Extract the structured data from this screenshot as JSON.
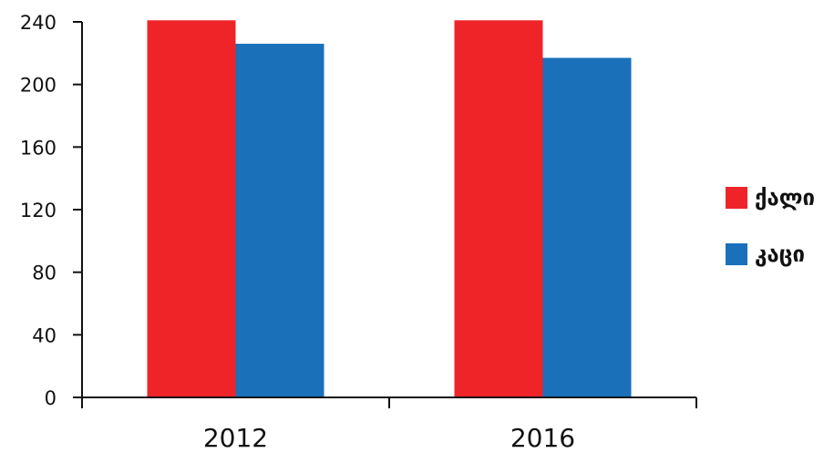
{
  "chart_data": {
    "type": "bar",
    "categories": [
      "2012",
      "2016"
    ],
    "series": [
      {
        "name": "ქალი",
        "color": "#ee2428",
        "values": [
          241,
          241
        ]
      },
      {
        "name": "კაცი",
        "color": "#1a70b9",
        "values": [
          226,
          217
        ]
      }
    ],
    "ylim": [
      0,
      240
    ],
    "yticks": [
      "0",
      "40",
      "80",
      "120",
      "160",
      "200",
      "240"
    ],
    "grid": false,
    "legend_position": "right"
  }
}
